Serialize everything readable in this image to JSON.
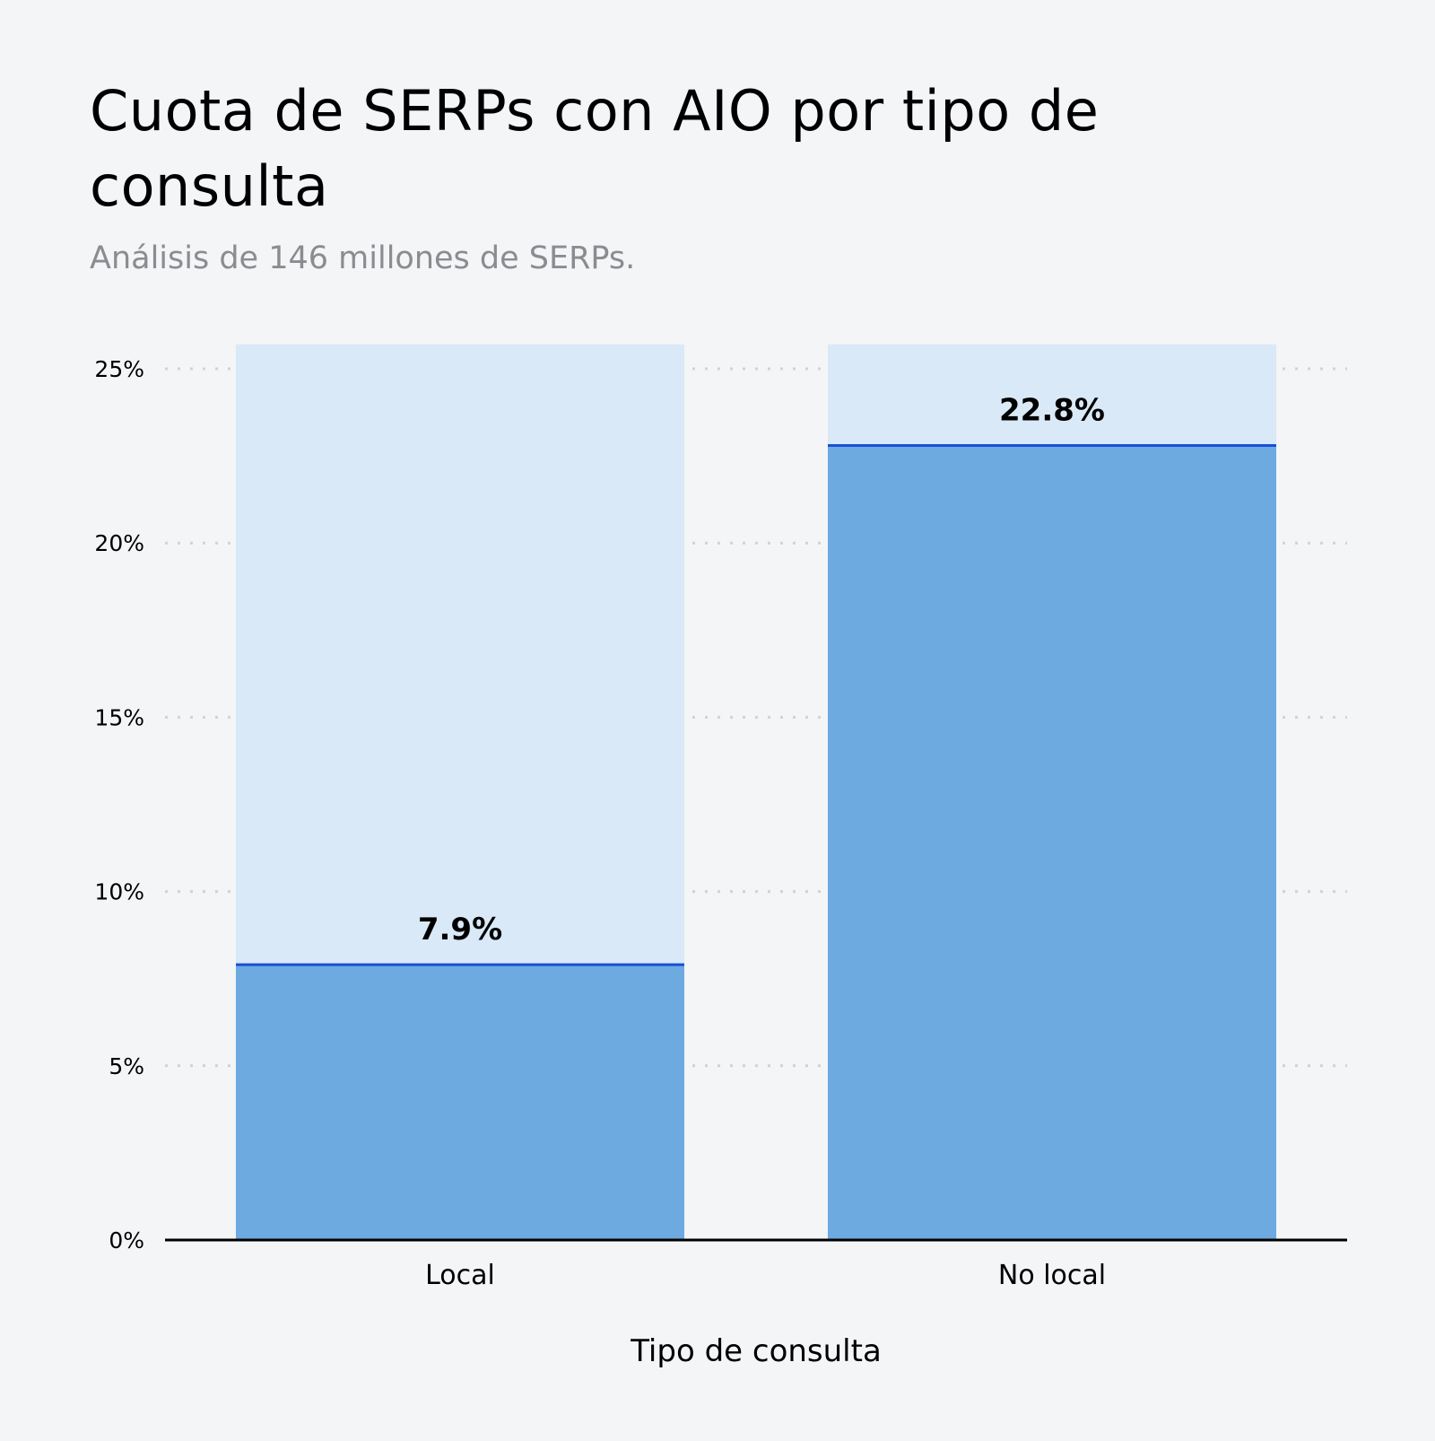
{
  "chart_data": {
    "type": "bar",
    "title": "Cuota de SERPs con AIO por tipo de consulta",
    "subtitle": "Análisis de 146 millones de SERPs.",
    "xlabel": "Tipo de consulta",
    "ylabel": "",
    "categories": [
      "Local",
      "No local"
    ],
    "values": [
      7.9,
      22.8
    ],
    "data_labels": [
      "7.9%",
      "22.8%"
    ],
    "ylim": [
      0,
      25.7
    ],
    "yticks": [
      0,
      5,
      10,
      15,
      20,
      25
    ],
    "ytick_labels": [
      "0%",
      "5%",
      "10%",
      "15%",
      "20%",
      "25%"
    ],
    "grid": "horizontal dotted",
    "legend": "none",
    "colors": {
      "bar": "#6caae0",
      "bar_background": "#d9e9f8",
      "value_line": "#1a4fd6",
      "axis": "#000000",
      "grid": "#cfd2d6",
      "background": "#f4f5f7"
    }
  }
}
